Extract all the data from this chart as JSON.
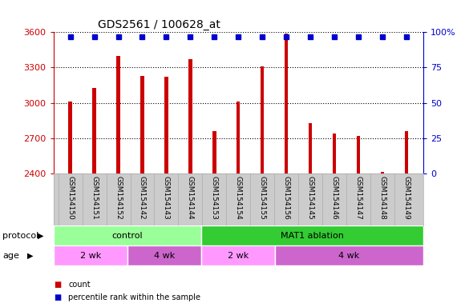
{
  "title": "GDS2561 / 100628_at",
  "samples": [
    "GSM154150",
    "GSM154151",
    "GSM154152",
    "GSM154142",
    "GSM154143",
    "GSM154144",
    "GSM154153",
    "GSM154154",
    "GSM154155",
    "GSM154156",
    "GSM154145",
    "GSM154146",
    "GSM154147",
    "GSM154148",
    "GSM154149"
  ],
  "counts": [
    3010,
    3130,
    3400,
    3230,
    3220,
    3370,
    2760,
    3010,
    3310,
    3590,
    2830,
    2740,
    2720,
    2410,
    2760
  ],
  "percentile_ranks": [
    97,
    97,
    97,
    97,
    97,
    97,
    97,
    97,
    97,
    97,
    97,
    97,
    97,
    97,
    97
  ],
  "ylim_left": [
    2400,
    3600
  ],
  "ylim_right": [
    0,
    100
  ],
  "yticks_left": [
    2400,
    2700,
    3000,
    3300,
    3600
  ],
  "yticks_right": [
    0,
    25,
    50,
    75,
    100
  ],
  "bar_color": "#cc0000",
  "dot_color": "#0000cc",
  "grid_color": "#000000",
  "axis_label_color_left": "#cc0000",
  "axis_label_color_right": "#0000cc",
  "protocol_groups": [
    {
      "label": "control",
      "start": 0,
      "end": 6,
      "color": "#99ff99"
    },
    {
      "label": "MAT1 ablation",
      "start": 6,
      "end": 15,
      "color": "#33cc33"
    }
  ],
  "age_groups": [
    {
      "label": "2 wk",
      "start": 0,
      "end": 3,
      "color": "#ff99ff"
    },
    {
      "label": "4 wk",
      "start": 3,
      "end": 6,
      "color": "#cc66cc"
    },
    {
      "label": "2 wk",
      "start": 6,
      "end": 9,
      "color": "#ff99ff"
    },
    {
      "label": "4 wk",
      "start": 9,
      "end": 15,
      "color": "#cc66cc"
    }
  ],
  "tick_bg_color": "#cccccc",
  "protocol_label": "protocol",
  "age_label": "age",
  "legend_items": [
    {
      "label": "count",
      "color": "#cc0000"
    },
    {
      "label": "percentile rank within the sample",
      "color": "#0000cc"
    }
  ],
  "bar_bottom": 2400,
  "bar_width": 0.15,
  "dot_size": 4,
  "figsize": [
    5.8,
    3.84
  ],
  "dpi": 100
}
